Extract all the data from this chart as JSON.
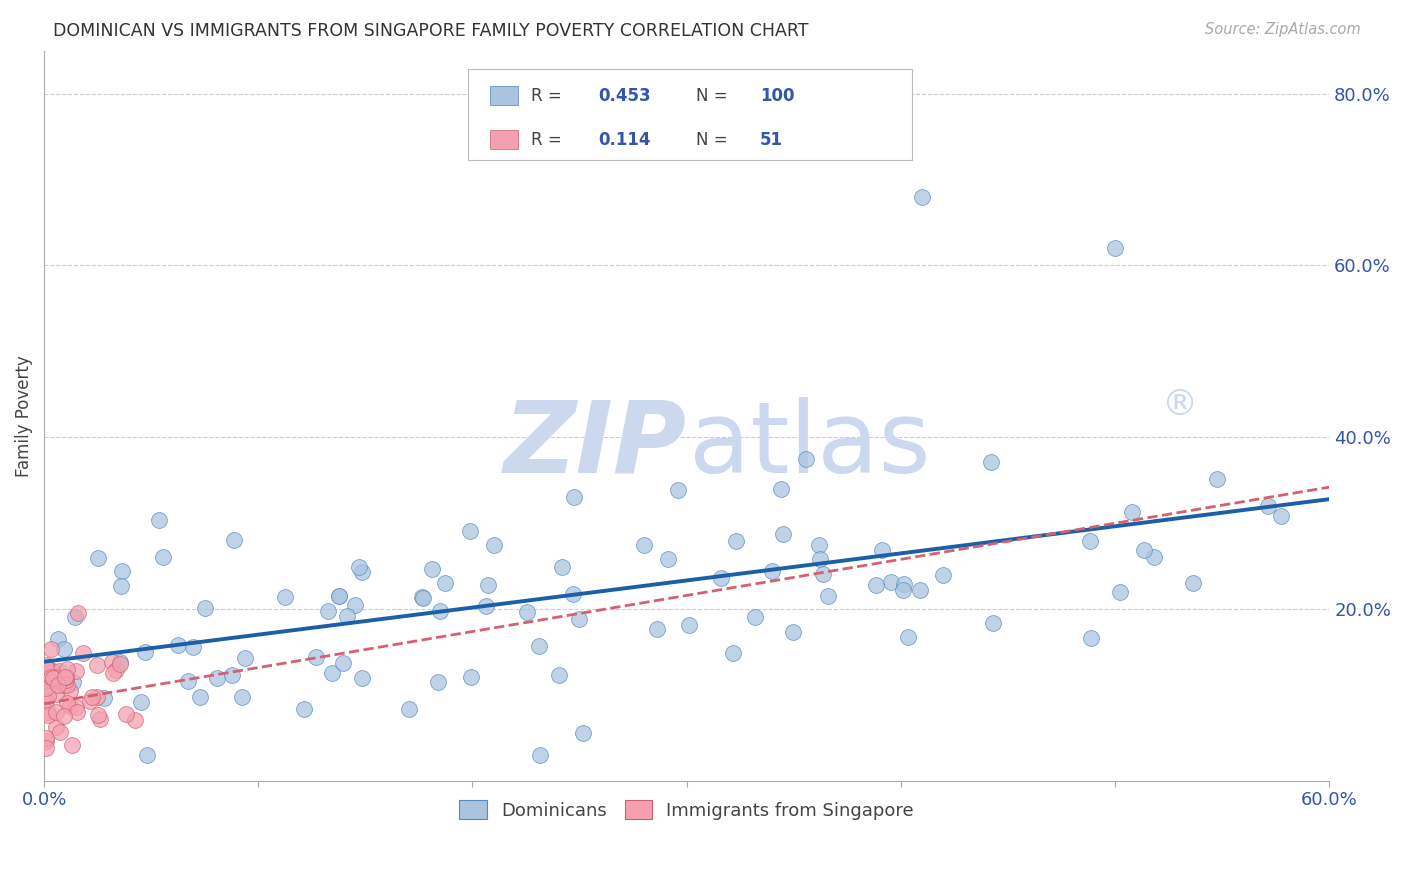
{
  "title": "DOMINICAN VS IMMIGRANTS FROM SINGAPORE FAMILY POVERTY CORRELATION CHART",
  "source": "Source: ZipAtlas.com",
  "ylabel": "Family Poverty",
  "xlim": [
    0.0,
    0.6
  ],
  "ylim": [
    0.0,
    0.85
  ],
  "xtick_positions": [
    0.0,
    0.1,
    0.2,
    0.3,
    0.4,
    0.5,
    0.6
  ],
  "xtick_labels": [
    "0.0%",
    "",
    "",
    "",
    "",
    "",
    "60.0%"
  ],
  "ytick_positions": [
    0.0,
    0.2,
    0.4,
    0.6,
    0.8
  ],
  "ytick_labels": [
    "",
    "20.0%",
    "40.0%",
    "60.0%",
    "80.0%"
  ],
  "dominicans_line_color": "#1a5fa8",
  "singapore_line_color": "#d46070",
  "scatter_dominicans_color": "#aac4e0",
  "scatter_dominicans_edge": "#5588bb",
  "scatter_singapore_color": "#f4a0b0",
  "scatter_singapore_edge": "#cc6070",
  "watermark_zip_color": "#ccd8ee",
  "watermark_atlas_color": "#ccd8ee",
  "grid_color": "#cccccc",
  "tick_label_color": "#3355aa",
  "title_color": "#333333",
  "source_color": "#aaaaaa",
  "legend_box_color": "#dddddd",
  "legend_r_n_color": "#3355aa"
}
